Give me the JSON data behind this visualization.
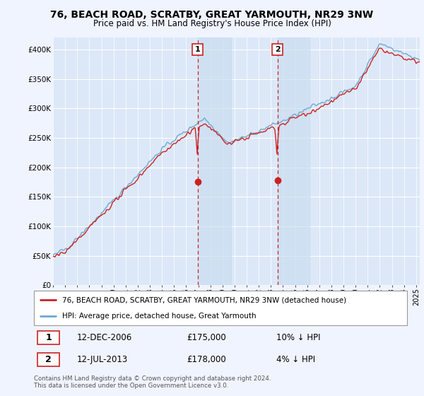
{
  "title": "76, BEACH ROAD, SCRATBY, GREAT YARMOUTH, NR29 3NW",
  "subtitle": "Price paid vs. HM Land Registry's House Price Index (HPI)",
  "ylabel_ticks": [
    "£0",
    "£50K",
    "£100K",
    "£150K",
    "£200K",
    "£250K",
    "£300K",
    "£350K",
    "£400K"
  ],
  "ytick_values": [
    0,
    50000,
    100000,
    150000,
    200000,
    250000,
    300000,
    350000,
    400000
  ],
  "ylim": [
    0,
    420000
  ],
  "xlim_start": 1995.0,
  "xlim_end": 2025.3,
  "background_color": "#f0f4ff",
  "plot_bg": "#dce8f8",
  "hpi_color": "#6fa8d0",
  "price_color": "#cc2222",
  "marker1_x": 2006.95,
  "marker1_y": 175000,
  "marker2_x": 2013.54,
  "marker2_y": 178000,
  "highlight1_start": 2006.95,
  "highlight1_end": 2009.7,
  "highlight2_start": 2013.54,
  "highlight2_end": 2016.2,
  "legend_line1": "76, BEACH ROAD, SCRATBY, GREAT YARMOUTH, NR29 3NW (detached house)",
  "legend_line2": "HPI: Average price, detached house, Great Yarmouth",
  "note1_label": "1",
  "note1_date": "12-DEC-2006",
  "note1_price": "£175,000",
  "note1_pct": "10% ↓ HPI",
  "note2_label": "2",
  "note2_date": "12-JUL-2013",
  "note2_price": "£178,000",
  "note2_pct": "4% ↓ HPI",
  "footer": "Contains HM Land Registry data © Crown copyright and database right 2024.\nThis data is licensed under the Open Government Licence v3.0."
}
